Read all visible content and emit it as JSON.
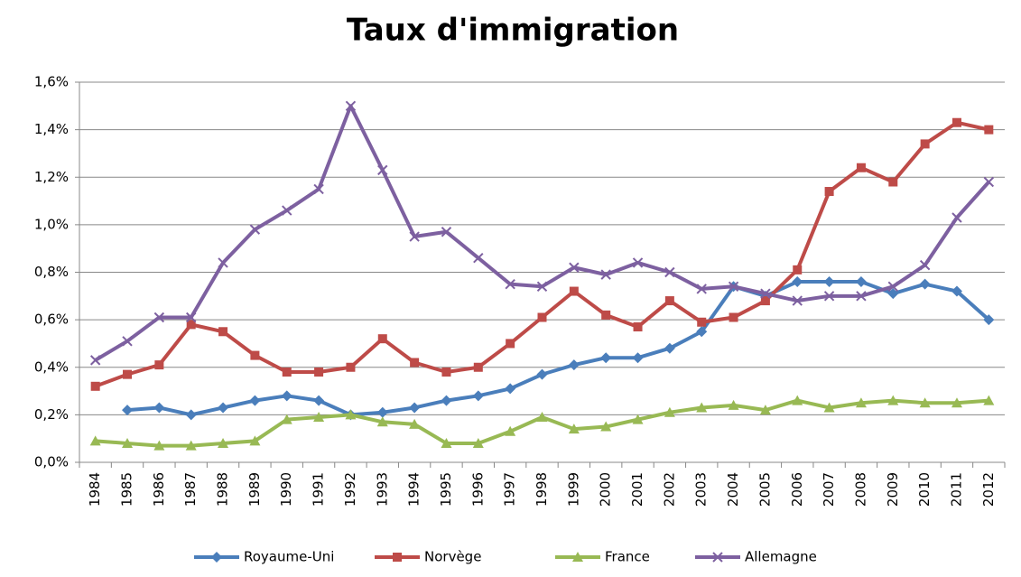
{
  "chart_data": {
    "type": "line",
    "title": "Taux d'immigration",
    "categories": [
      "1984",
      "1985",
      "1986",
      "1987",
      "1988",
      "1989",
      "1990",
      "1991",
      "1992",
      "1993",
      "1994",
      "1995",
      "1996",
      "1997",
      "1998",
      "1999",
      "2000",
      "2001",
      "2002",
      "2003",
      "2004",
      "2005",
      "2006",
      "2007",
      "2008",
      "2009",
      "2010",
      "2011",
      "2012"
    ],
    "series": [
      {
        "name": "Royaume-Uni",
        "color": "#4a7ebb",
        "marker": "diamond",
        "values": [
          null,
          0.22,
          0.23,
          0.2,
          0.23,
          0.26,
          0.28,
          0.26,
          0.2,
          0.21,
          0.23,
          0.26,
          0.28,
          0.31,
          0.37,
          0.41,
          0.44,
          0.44,
          0.48,
          0.55,
          0.74,
          0.7,
          0.76,
          0.76,
          0.76,
          0.71,
          0.75,
          0.72,
          0.6
        ]
      },
      {
        "name": "Norvège",
        "color": "#be4b48",
        "marker": "square",
        "values": [
          0.32,
          0.37,
          0.41,
          0.58,
          0.55,
          0.45,
          0.38,
          0.38,
          0.4,
          0.52,
          0.42,
          0.38,
          0.4,
          0.5,
          0.61,
          0.72,
          0.62,
          0.57,
          0.68,
          0.59,
          0.61,
          0.68,
          0.81,
          1.14,
          1.24,
          1.18,
          1.34,
          1.43,
          1.4
        ]
      },
      {
        "name": "France",
        "color": "#98b954",
        "marker": "triangle",
        "values": [
          0.09,
          0.08,
          0.07,
          0.07,
          0.08,
          0.09,
          0.18,
          0.19,
          0.2,
          0.17,
          0.16,
          0.08,
          0.08,
          0.13,
          0.19,
          0.14,
          0.15,
          0.18,
          0.21,
          0.23,
          0.24,
          0.22,
          0.26,
          0.23,
          0.25,
          0.26,
          0.25,
          0.25,
          0.26
        ]
      },
      {
        "name": "Allemagne",
        "color": "#7d60a0",
        "marker": "x",
        "values": [
          0.43,
          0.51,
          0.61,
          0.61,
          0.84,
          0.98,
          1.06,
          1.15,
          1.5,
          1.23,
          0.95,
          0.97,
          0.86,
          0.75,
          0.74,
          0.82,
          0.79,
          0.84,
          0.8,
          0.73,
          0.74,
          0.71,
          0.68,
          0.7,
          0.7,
          0.74,
          0.83,
          1.03,
          1.18
        ]
      }
    ],
    "ylim": [
      0,
      1.6
    ],
    "yticks": [
      {
        "value": 0,
        "label": "0,0%"
      },
      {
        "value": 0.2,
        "label": "0,2%"
      },
      {
        "value": 0.4,
        "label": "0,4%"
      },
      {
        "value": 0.6,
        "label": "0,6%"
      },
      {
        "value": 0.8,
        "label": "0,8%"
      },
      {
        "value": 1.0,
        "label": "1,0%"
      },
      {
        "value": 1.2,
        "label": "1,2%"
      },
      {
        "value": 1.4,
        "label": "1,4%"
      },
      {
        "value": 1.6,
        "label": "1,6%"
      }
    ],
    "grid": true,
    "legend_position": "bottom"
  }
}
